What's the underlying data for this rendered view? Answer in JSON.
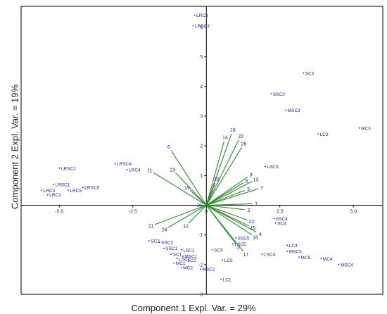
{
  "chart_data": {
    "type": "scatter",
    "subtype": "pca-biplot",
    "xlabel": "Component 1 Expl. Var. = 29%",
    "ylabel": "Component 2 Expl. Var. = 19%",
    "xlim": [
      -6.3,
      6.0
    ],
    "ylim": [
      -3.0,
      6.7
    ],
    "x_ticks": [
      -5.0,
      -2.5,
      0,
      2.5,
      5.0
    ],
    "x_tick_labels": [
      "-5.0",
      "-2.5",
      "0",
      "2.5",
      "5.0"
    ],
    "y_ticks": [
      -3,
      -2,
      -1,
      0,
      1,
      2,
      3,
      4,
      5,
      6
    ],
    "y_tick_labels": [
      "-3",
      "-2",
      "-1",
      "0",
      "1",
      "2",
      "3",
      "4",
      "5",
      "6"
    ],
    "grid": false,
    "colors": {
      "points": "#1a1aa8",
      "loadings": "#2e8b2e",
      "axis": "#000000"
    },
    "points": [
      {
        "label": "LRC3",
        "x": -0.4,
        "y": 6.4
      },
      {
        "label": "LRSC3",
        "x": -0.45,
        "y": 6.05
      },
      {
        "label": "SC3",
        "x": 3.3,
        "y": 4.45
      },
      {
        "label": "SSC3",
        "x": 2.2,
        "y": 3.75
      },
      {
        "label": "MSC3",
        "x": 2.7,
        "y": 3.2
      },
      {
        "label": "LC3",
        "x": 3.8,
        "y": 2.4
      },
      {
        "label": "MC3",
        "x": 5.2,
        "y": 2.6
      },
      {
        "label": "LSC3",
        "x": 2.0,
        "y": 1.3
      },
      {
        "label": "LRSC2",
        "x": -5.0,
        "y": 1.25
      },
      {
        "label": "LRSC4",
        "x": -3.1,
        "y": 1.4
      },
      {
        "label": "LRC4",
        "x": -2.7,
        "y": 1.2
      },
      {
        "label": "LRSC1",
        "x": -5.2,
        "y": 0.7
      },
      {
        "label": "LRC2",
        "x": -5.6,
        "y": 0.5
      },
      {
        "label": "LRC1",
        "x": -5.4,
        "y": 0.35
      },
      {
        "label": "LRC5",
        "x": -4.7,
        "y": 0.5
      },
      {
        "label": "LRSC5",
        "x": -4.2,
        "y": 0.6
      },
      {
        "label": "SSC4",
        "x": 2.3,
        "y": -0.45
      },
      {
        "label": "SC4",
        "x": 2.35,
        "y": -0.6
      },
      {
        "label": "SSC5",
        "x": 1.0,
        "y": -1.1
      },
      {
        "label": "LSC5",
        "x": 0.9,
        "y": -1.3
      },
      {
        "label": "LC4",
        "x": 2.75,
        "y": -1.35
      },
      {
        "label": "MSC5",
        "x": 2.75,
        "y": -1.55
      },
      {
        "label": "LSC4",
        "x": 1.9,
        "y": -1.65
      },
      {
        "label": "MC5",
        "x": 3.15,
        "y": -1.75
      },
      {
        "label": "MC4",
        "x": 3.9,
        "y": -1.8
      },
      {
        "label": "MSC4",
        "x": 4.5,
        "y": -2.0
      },
      {
        "label": "SC5",
        "x": 0.2,
        "y": -1.5
      },
      {
        "label": "LC5",
        "x": 0.55,
        "y": -1.85
      },
      {
        "label": "LC1",
        "x": 0.5,
        "y": -2.5
      },
      {
        "label": "SC2",
        "x": -1.95,
        "y": -1.2
      },
      {
        "label": "SSC2",
        "x": -1.6,
        "y": -1.25
      },
      {
        "label": "SSC1",
        "x": -1.45,
        "y": -1.45
      },
      {
        "label": "LSC1",
        "x": -0.85,
        "y": -1.5
      },
      {
        "label": "SC1",
        "x": -1.2,
        "y": -1.65
      },
      {
        "label": "MSC1",
        "x": -0.8,
        "y": -1.72
      },
      {
        "label": "LSC2",
        "x": -1.0,
        "y": -1.8
      },
      {
        "label": "LC2",
        "x": -0.7,
        "y": -1.85
      },
      {
        "label": "MC1",
        "x": -1.1,
        "y": -1.95
      },
      {
        "label": "MC2",
        "x": -0.85,
        "y": -2.1
      },
      {
        "label": "MSC2",
        "x": -0.2,
        "y": -2.15
      }
    ],
    "loadings": [
      {
        "label": "1",
        "x": 1.55,
        "y": 0.05
      },
      {
        "label": "2",
        "x": 1.3,
        "y": -0.15
      },
      {
        "label": "3",
        "x": 1.0,
        "y": -1.3
      },
      {
        "label": "4",
        "x": 1.7,
        "y": -0.9
      },
      {
        "label": "5",
        "x": 1.3,
        "y": 0.5
      },
      {
        "label": "6",
        "x": -1.2,
        "y": 1.85
      },
      {
        "label": "7",
        "x": 1.75,
        "y": 0.55
      },
      {
        "label": "8",
        "x": 1.25,
        "y": 0.75
      },
      {
        "label": "9",
        "x": 1.4,
        "y": 0.95
      },
      {
        "label": "10",
        "x": -0.1,
        "y": 0.0
      },
      {
        "label": "11",
        "x": -1.8,
        "y": 1.1
      },
      {
        "label": "12",
        "x": -0.6,
        "y": -0.6
      },
      {
        "label": "13",
        "x": 1.55,
        "y": 0.8
      },
      {
        "label": "14",
        "x": 0.6,
        "y": 2.15
      },
      {
        "label": "15",
        "x": 1.45,
        "y": -0.7
      },
      {
        "label": "16",
        "x": 0.85,
        "y": 2.4
      },
      {
        "label": "17",
        "x": 1.25,
        "y": -1.55
      },
      {
        "label": "18",
        "x": 1.55,
        "y": -1.0
      },
      {
        "label": "19",
        "x": -0.55,
        "y": 0.5
      },
      {
        "label": "20",
        "x": 1.1,
        "y": 2.2
      },
      {
        "label": "21",
        "x": -1.75,
        "y": -0.65
      },
      {
        "label": "22",
        "x": 1.4,
        "y": -0.5
      },
      {
        "label": "23",
        "x": -1.05,
        "y": 1.1
      },
      {
        "label": "24",
        "x": -1.3,
        "y": -0.75
      },
      {
        "label": "25",
        "x": 0.3,
        "y": 0.75
      },
      {
        "label": "26",
        "x": 1.2,
        "y": 1.95
      }
    ]
  }
}
